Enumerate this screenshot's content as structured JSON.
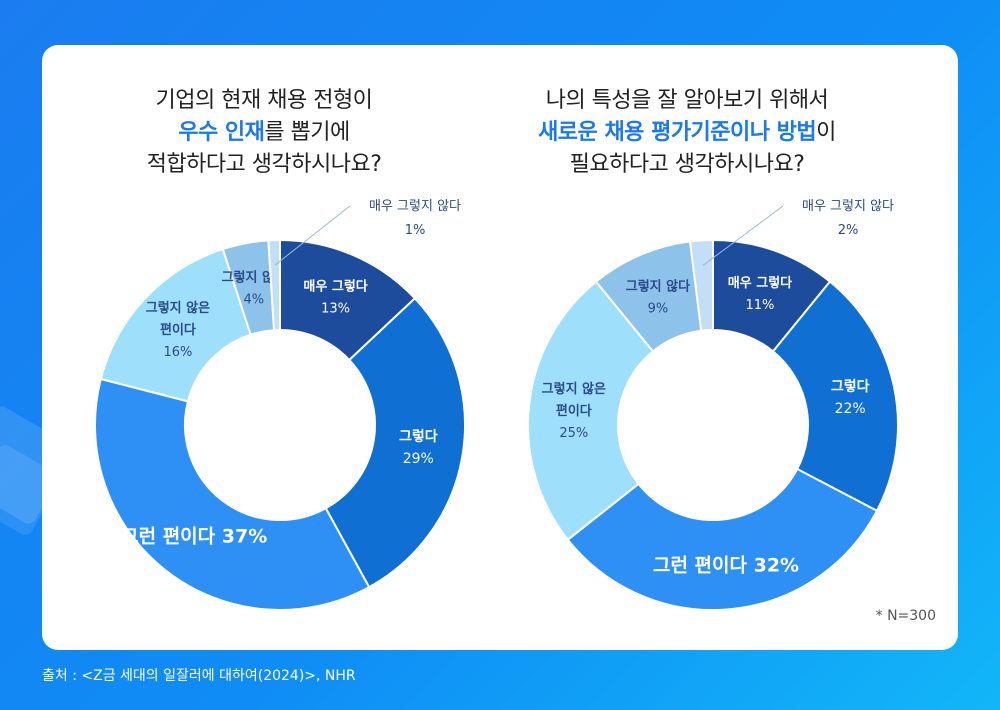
{
  "footnote": "* N=300",
  "source": "출처 : <Z금 세대의 일잘러에 대하여(2024)>, NHR",
  "chart_data": [
    {
      "type": "pie",
      "title_lines": [
        [
          "기업의 현재 채용 전형이"
        ],
        [
          "우수 인재",
          "를 뽑기에"
        ],
        [
          "적합하다고 생각하시나요?"
        ]
      ],
      "slices": [
        {
          "label": "매우 그렇다",
          "value": 13,
          "display": "13%",
          "color": "#1c4c9b"
        },
        {
          "label": "그렇다",
          "value": 29,
          "display": "29%",
          "color": "#0f6fd2"
        },
        {
          "label": "그런 편이다",
          "value": 37,
          "display": "그런 편이다 37%",
          "color": "#2e8ff5"
        },
        {
          "label": "그렇지 않은 편이다",
          "value": 16,
          "display": "16%",
          "color": "#9ee0fb"
        },
        {
          "label": "그렇지 않다",
          "value": 4,
          "display": "4%",
          "color": "#8dc2ea"
        },
        {
          "label": "매우 그렇지 않다",
          "value": 1,
          "display": "1%",
          "color": "#c3def7"
        }
      ]
    },
    {
      "type": "pie",
      "title_lines": [
        [
          "나의 특성을 잘 알아보기 위해서"
        ],
        [
          "새로운 채용 평가기준이나 방법",
          "이"
        ],
        [
          "필요하다고 생각하시나요?"
        ]
      ],
      "slices": [
        {
          "label": "매우 그렇다",
          "value": 11,
          "display": "11%",
          "color": "#1c4c9b"
        },
        {
          "label": "그렇다",
          "value": 22,
          "display": "22%",
          "color": "#0f6fd2"
        },
        {
          "label": "그런 편이다",
          "value": 32,
          "display": "그런 편이다 32%",
          "color": "#2e8ff5"
        },
        {
          "label": "그렇지 않은 편이다",
          "value": 25,
          "display": "25%",
          "color": "#9ee0fb"
        },
        {
          "label": "그렇지 않다",
          "value": 9,
          "display": "9%",
          "color": "#8dc2ea"
        },
        {
          "label": "매우 그렇지 않다",
          "value": 2,
          "display": "2%",
          "color": "#c3def7"
        }
      ]
    }
  ]
}
